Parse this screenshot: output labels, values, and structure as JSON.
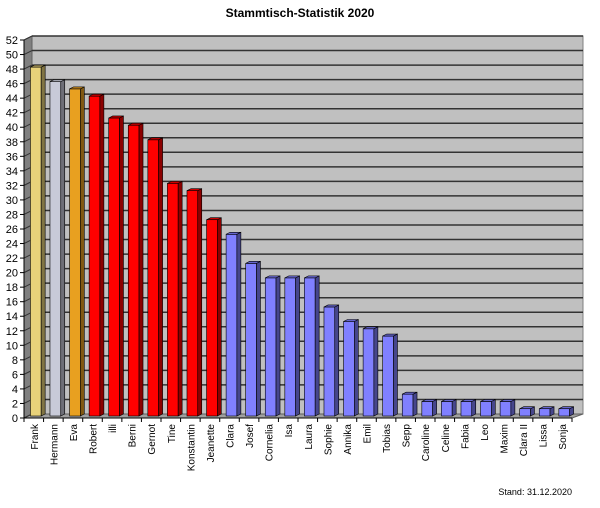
{
  "title": "Stammtisch-Statistik  2020",
  "footer": "Stand: 31.12.2020",
  "colors": {
    "gold": "#e8d27a",
    "silver": "#c8cad8",
    "bronze": "#e8a020",
    "red": "#ff0000",
    "blue": "#8080ff",
    "wall": "#c0c0c0",
    "grid": "#333333"
  },
  "chart_data": {
    "type": "bar",
    "title": "Stammtisch-Statistik  2020",
    "xlabel": "",
    "ylabel": "",
    "ylim": [
      0,
      52
    ],
    "yticks": [
      0,
      2,
      4,
      6,
      8,
      10,
      12,
      14,
      16,
      18,
      20,
      22,
      24,
      26,
      28,
      30,
      32,
      34,
      36,
      38,
      40,
      42,
      44,
      46,
      48,
      50,
      52
    ],
    "grid": true,
    "style": "3d-column",
    "categories": [
      "Frank",
      "Hermann",
      "Eva",
      "Robert",
      "illi",
      "Berni",
      "Gernot",
      "Tine",
      "Konstantin",
      "Jeanette",
      "Clara",
      "Josef",
      "Cornelia",
      "Isa",
      "Laura",
      "Sophie",
      "Annika",
      "Emil",
      "Tobias",
      "Sepp",
      "Caroline",
      "Celine",
      "Fabia",
      "Leo",
      "Maxim",
      "Clara II",
      "Lissa",
      "Sonja"
    ],
    "values": [
      48,
      46,
      45,
      44,
      41,
      40,
      38,
      32,
      31,
      27,
      25,
      21,
      19,
      19,
      19,
      15,
      13,
      12,
      11,
      3,
      2,
      2,
      2,
      2,
      2,
      1,
      1,
      1
    ],
    "bar_colors": [
      "gold",
      "silver",
      "bronze",
      "red",
      "red",
      "red",
      "red",
      "red",
      "red",
      "red",
      "blue",
      "blue",
      "blue",
      "blue",
      "blue",
      "blue",
      "blue",
      "blue",
      "blue",
      "blue",
      "blue",
      "blue",
      "blue",
      "blue",
      "blue",
      "blue",
      "blue",
      "blue"
    ],
    "annotations": [
      "Stand: 31.12.2020"
    ]
  }
}
